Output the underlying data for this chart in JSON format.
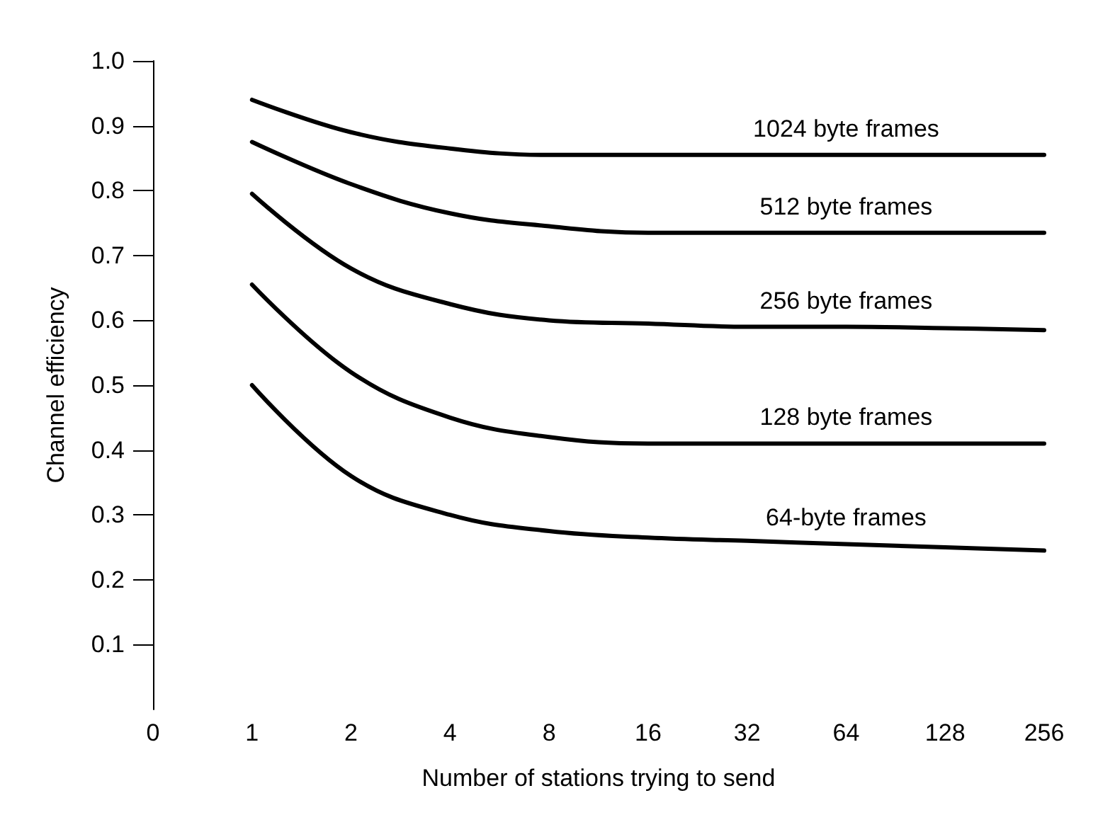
{
  "chart_data": {
    "type": "line",
    "xlabel": "Number of stations trying to send",
    "ylabel": "Channel efficiency",
    "categories": [
      "0",
      "1",
      "2",
      "4",
      "8",
      "16",
      "32",
      "64",
      "128",
      "256"
    ],
    "ylim": [
      0,
      1
    ],
    "yticks": [
      0.1,
      0.2,
      0.3,
      0.4,
      0.5,
      0.6,
      0.7,
      0.8,
      0.9,
      {
        "value": 1,
        "label": "1.0"
      }
    ],
    "grid": false,
    "legend": false,
    "marker": "none",
    "line_style": "solid",
    "series": [
      {
        "name": "1024 byte frames",
        "color": "#000000",
        "values": [
          null,
          0.94,
          0.89,
          0.865,
          0.855,
          0.855,
          0.855,
          0.855,
          0.855,
          0.855
        ]
      },
      {
        "name": "512 byte frames",
        "color": "#000000",
        "values": [
          null,
          0.875,
          0.81,
          0.765,
          0.745,
          0.735,
          0.735,
          0.735,
          0.735,
          0.735
        ]
      },
      {
        "name": "256 byte frames",
        "color": "#000000",
        "values": [
          null,
          0.795,
          0.68,
          0.625,
          0.6,
          0.595,
          0.59,
          0.59,
          0.588,
          0.585
        ]
      },
      {
        "name": "128 byte frames",
        "color": "#000000",
        "values": [
          null,
          0.655,
          0.52,
          0.45,
          0.42,
          0.41,
          0.41,
          0.41,
          0.41,
          0.41
        ]
      },
      {
        "name": "64-byte frames",
        "color": "#000000",
        "values": [
          null,
          0.5,
          0.36,
          0.3,
          0.275,
          0.265,
          0.26,
          0.255,
          0.25,
          0.245
        ]
      }
    ]
  }
}
